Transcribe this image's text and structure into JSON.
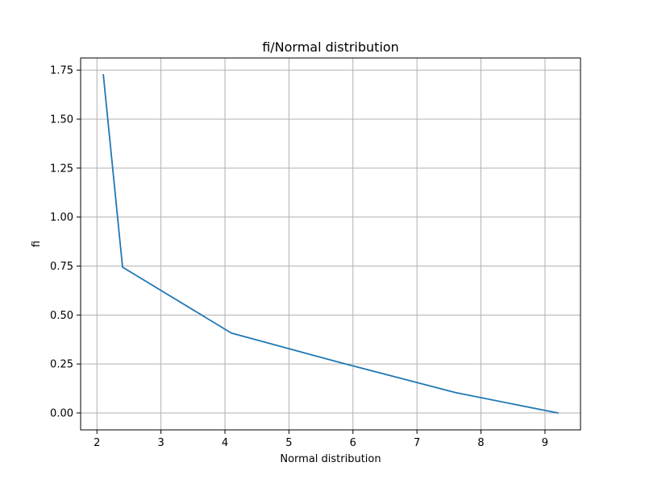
{
  "chart_data": {
    "type": "line",
    "title": "fi/Normal distribution",
    "xlabel": "Normal distribution",
    "ylabel": "fi",
    "xlim": [
      1.745,
      9.555
    ],
    "ylim": [
      -0.0863,
      1.8123
    ],
    "xticks": [
      2,
      3,
      4,
      5,
      6,
      7,
      8,
      9
    ],
    "yticks": [
      0.0,
      0.25,
      0.5,
      0.75,
      1.0,
      1.25,
      1.5,
      1.75
    ],
    "xtick_labels": [
      "2",
      "3",
      "4",
      "5",
      "6",
      "7",
      "8",
      "9"
    ],
    "ytick_labels": [
      "0.00",
      "0.25",
      "0.50",
      "0.75",
      "1.00",
      "1.25",
      "1.50",
      "1.75"
    ],
    "grid": true,
    "series": [
      {
        "color": "#1f77b4",
        "x": [
          2.1,
          2.4,
          4.1,
          5.8,
          7.6,
          9.2
        ],
        "y": [
          1.726,
          0.7445,
          0.4079,
          0.2574,
          0.1041,
          0.0
        ]
      }
    ]
  }
}
